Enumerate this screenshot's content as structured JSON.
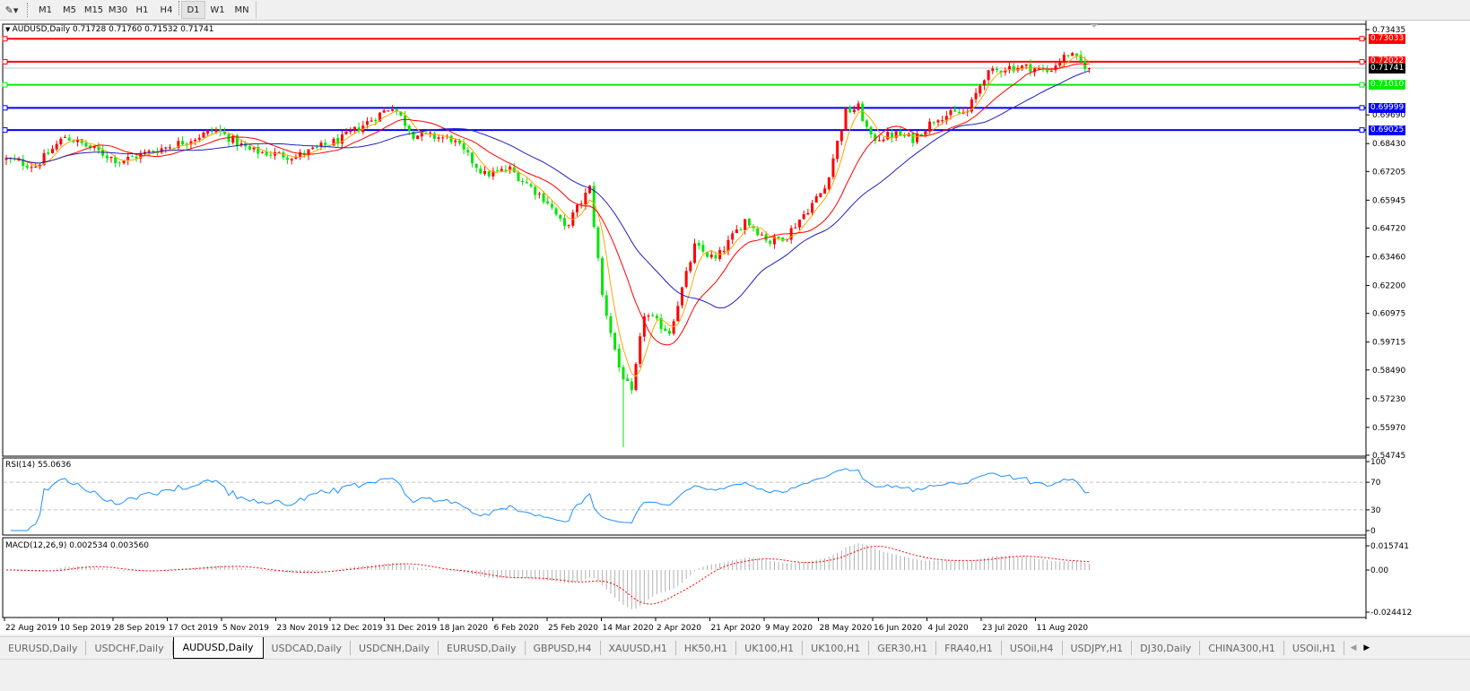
{
  "toolbar": {
    "tool_icon": "draw-tools-icon",
    "timeframes": [
      "M1",
      "M5",
      "M15",
      "M30",
      "H1",
      "H4",
      "D1",
      "W1",
      "MN"
    ],
    "active_timeframe": "D1"
  },
  "main_pane": {
    "title": "AUDUSD,Daily  0.71728 0.71760 0.71532 0.71741",
    "current_price": "0.71741",
    "price_ticks": [
      "0.73435",
      "0.69690",
      "0.68430",
      "0.67205",
      "0.65945",
      "0.64720",
      "0.63460",
      "0.62200",
      "0.60975",
      "0.59715",
      "0.58490",
      "0.57230",
      "0.55970",
      "0.54745"
    ],
    "levels": [
      {
        "price": 0.73033,
        "label": "0.73033",
        "color": "#ff0000"
      },
      {
        "price": 0.72022,
        "label": "0.72022",
        "color": "#ff0000"
      },
      {
        "price": 0.7101,
        "label": "0.71010",
        "color": "#00ee00"
      },
      {
        "price": 0.69999,
        "label": "0.69999",
        "color": "#0000ff"
      },
      {
        "price": 0.69025,
        "label": "0.69025",
        "color": "#0000ff"
      }
    ]
  },
  "rsi_pane": {
    "title": "RSI(14) 55.0636",
    "ticks": [
      "100",
      "70",
      "30",
      "0"
    ],
    "levels": [
      70,
      30
    ]
  },
  "macd_pane": {
    "title": "MACD(12,26,9) 0.002534 0.003560",
    "ticks": [
      "0.015741",
      "0.00",
      "-0.024412"
    ]
  },
  "x_axis": {
    "labels": [
      "22 Aug 2019",
      "10 Sep 2019",
      "28 Sep 2019",
      "17 Oct 2019",
      "5 Nov 2019",
      "23 Nov 2019",
      "12 Dec 2019",
      "31 Dec 2019",
      "18 Jan 2020",
      "6 Feb 2020",
      "25 Feb 2020",
      "14 Mar 2020",
      "2 Apr 2020",
      "21 Apr 2020",
      "9 May 2020",
      "28 May 2020",
      "16 Jun 2020",
      "4 Jul 2020",
      "23 Jul 2020",
      "11 Aug 2020"
    ]
  },
  "tabs": [
    {
      "label": "EURUSD,Daily"
    },
    {
      "label": "USDCHF,Daily"
    },
    {
      "label": "AUDUSD,Daily",
      "active": true
    },
    {
      "label": "USDCAD,Daily"
    },
    {
      "label": "USDCNH,Daily"
    },
    {
      "label": "EURUSD,Daily"
    },
    {
      "label": "GBPUSD,H4"
    },
    {
      "label": "XAUUSD,H1"
    },
    {
      "label": "HK50,H1"
    },
    {
      "label": "UK100,H1"
    },
    {
      "label": "UK100,H1"
    },
    {
      "label": "GER30,H1"
    },
    {
      "label": "FRA40,H1"
    },
    {
      "label": "USOil,H4"
    },
    {
      "label": "USDJPY,H1"
    },
    {
      "label": "DJ30,Daily"
    },
    {
      "label": "CHINA300,H1"
    },
    {
      "label": "USOil,H1"
    }
  ],
  "colors": {
    "bull": "#ff0000",
    "bear": "#00e600",
    "ma_fast": "#ffa500",
    "ma_mid": "#ff0000",
    "ma_slow": "#2020c0",
    "rsi": "#1e90ff",
    "macd_signal": "#ff0000",
    "macd_hist": "#b0b0b0"
  },
  "chart_data": {
    "type": "candlestick",
    "symbol": "AUDUSD",
    "timeframe": "Daily",
    "last_bar": {
      "open": 0.71728,
      "high": 0.7176,
      "low": 0.71532,
      "close": 0.71741
    },
    "ylim": [
      0.54745,
      0.73435
    ],
    "bars_count": 259,
    "approx_close_path": [
      [
        0,
        0.6773
      ],
      [
        7,
        0.6745
      ],
      [
        14,
        0.6875
      ],
      [
        27,
        0.6765
      ],
      [
        41,
        0.6844
      ],
      [
        50,
        0.6903
      ],
      [
        58,
        0.6812
      ],
      [
        69,
        0.6785
      ],
      [
        80,
        0.6864
      ],
      [
        92,
        0.7009
      ],
      [
        97,
        0.6883
      ],
      [
        106,
        0.6864
      ],
      [
        114,
        0.6706
      ],
      [
        120,
        0.673
      ],
      [
        129,
        0.6588
      ],
      [
        133,
        0.647
      ],
      [
        139,
        0.6647
      ],
      [
        142,
        0.6175
      ],
      [
        146,
        0.586
      ],
      [
        149,
        0.5742
      ],
      [
        152,
        0.6096
      ],
      [
        158,
        0.6017
      ],
      [
        164,
        0.6391
      ],
      [
        169,
        0.6332
      ],
      [
        176,
        0.6509
      ],
      [
        182,
        0.6411
      ],
      [
        186,
        0.6442
      ],
      [
        195,
        0.6647
      ],
      [
        200,
        0.6982
      ],
      [
        203,
        0.7001
      ],
      [
        206,
        0.6864
      ],
      [
        212,
        0.6883
      ],
      [
        216,
        0.6864
      ],
      [
        222,
        0.6962
      ],
      [
        229,
        0.6982
      ],
      [
        233,
        0.7139
      ],
      [
        238,
        0.7178
      ],
      [
        244,
        0.7178
      ],
      [
        248,
        0.7159
      ],
      [
        253,
        0.7237
      ],
      [
        258,
        0.71741
      ]
    ],
    "extreme_low": {
      "bar": 147,
      "price": 0.551
    }
  }
}
